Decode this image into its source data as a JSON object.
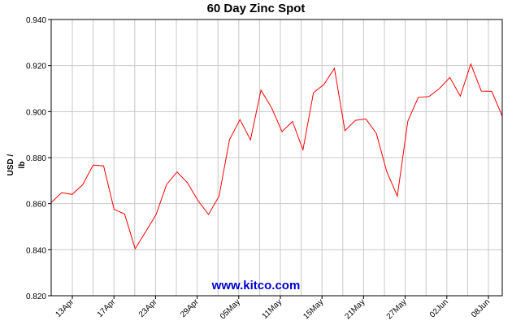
{
  "chart_data": {
    "type": "line",
    "title": "60 Day Zinc Spot",
    "ylabel": "USD / lb",
    "xlabel": "",
    "ylim": [
      0.82,
      0.94
    ],
    "yticks": [
      "0.820",
      "0.840",
      "0.860",
      "0.880",
      "0.900",
      "0.920",
      "0.940"
    ],
    "xtick_labels": [
      "13Apr",
      "17Apr",
      "23Apr",
      "29Apr",
      "05May",
      "11May",
      "15May",
      "21May",
      "27May",
      "02Jun",
      "08Jun"
    ],
    "grid": true,
    "line_color": "#ff0000",
    "series": [
      {
        "values": [
          0.8605,
          0.8648,
          0.864,
          0.8682,
          0.8768,
          0.8764,
          0.8575,
          0.8555,
          0.8404,
          0.8478,
          0.8553,
          0.8683,
          0.8738,
          0.869,
          0.8613,
          0.8553,
          0.8632,
          0.8878,
          0.8965,
          0.8877,
          0.9093,
          0.9018,
          0.8913,
          0.8957,
          0.8834,
          0.9082,
          0.9118,
          0.9188,
          0.8917,
          0.8962,
          0.8968,
          0.8905,
          0.8738,
          0.8633,
          0.8958,
          0.9062,
          0.9065,
          0.91,
          0.9148,
          0.9067,
          0.9207,
          0.9089,
          0.9088,
          0.898
        ]
      }
    ],
    "watermark": "www.kitco.com",
    "watermark_color": "#0000cc"
  }
}
